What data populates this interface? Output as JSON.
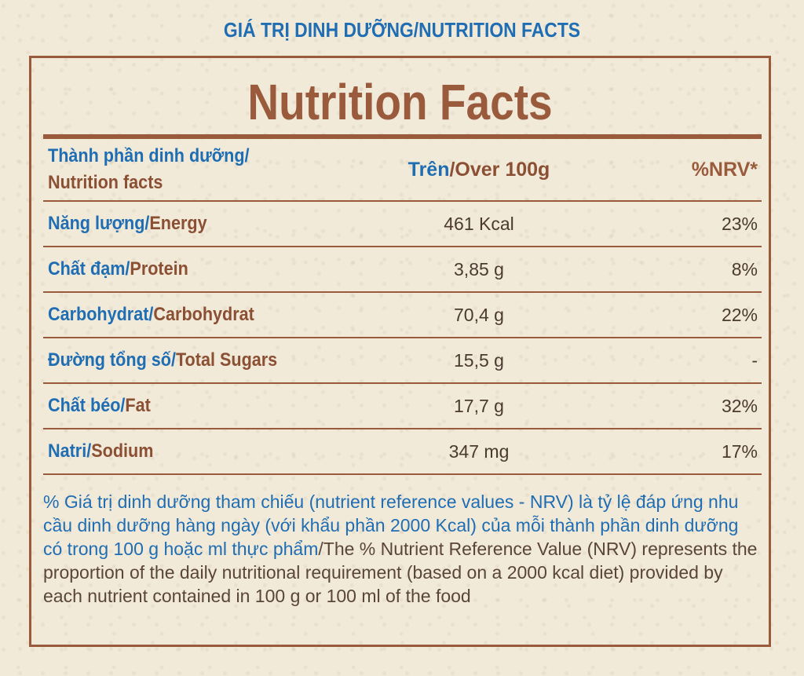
{
  "top_heading": "GIÁ TRỊ DINH DƯỠNG/NUTRITION FACTS",
  "title": "Nutrition Facts",
  "header": {
    "name_vi": "Thành phần dinh dưỡng/",
    "name_en": "Nutrition facts",
    "amount_vi": "Trên",
    "amount_en": "/Over 100g",
    "nrv": "%NRV*"
  },
  "rows": [
    {
      "vi": "Năng lượng/",
      "en": "Energy",
      "amount": "461 Kcal",
      "nrv": "23%"
    },
    {
      "vi": "Chất đạm/",
      "en": "Protein",
      "amount": "3,85 g",
      "nrv": "8%"
    },
    {
      "vi": "Carbohydrat/",
      "en": "Carbohydrat",
      "amount": "70,4 g",
      "nrv": "22%"
    },
    {
      "vi": "Đường tổng số/",
      "en": "Total Sugars",
      "amount": "15,5 g",
      "nrv": "-"
    },
    {
      "vi": "Chất béo/",
      "en": "Fat",
      "amount": "17,7 g",
      "nrv": "32%"
    },
    {
      "vi": "Natri/",
      "en": "Sodium",
      "amount": "347 mg",
      "nrv": "17%"
    }
  ],
  "footnote": {
    "vi": "% Giá trị dinh dưỡng tham chiếu (nutrient reference values - NRV) là tỷ lệ đáp ứng nhu cầu dinh dưỡng hàng ngày (với khẩu phần 2000 Kcal) của mỗi thành phần dinh dưỡng có trong 100 g hoặc ml thực phẩm",
    "en": "/The % Nutrient Reference Value (NRV) represents the proportion of the daily nutritional requirement (based on a 2000 kcal diet) provided by each nutrient contained in 100 g or 100 ml of the food"
  }
}
